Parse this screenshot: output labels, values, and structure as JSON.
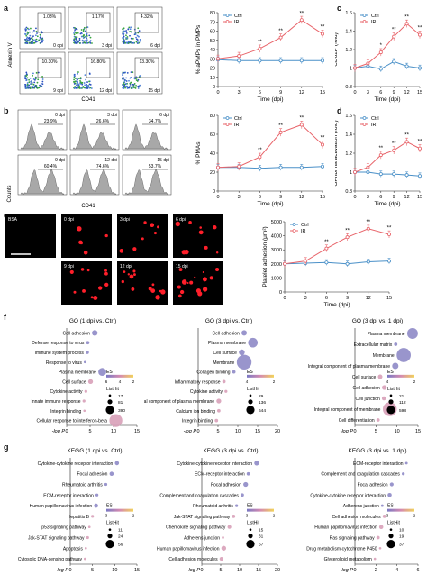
{
  "panel_labels": {
    "a": "a",
    "b": "b",
    "c": "c",
    "d": "d",
    "e": "e",
    "f": "f",
    "g": "g"
  },
  "flow_a": {
    "ylabel": "Annexin V",
    "xlabel": "CD41",
    "cells": [
      {
        "pct": "1.03%",
        "time": "0 dpi"
      },
      {
        "pct": "1.17%",
        "time": "3 dpi"
      },
      {
        "pct": "4.32%",
        "time": "6 dpi"
      },
      {
        "pct": "10.30%",
        "time": "9 dpi"
      },
      {
        "pct": "16.80%",
        "time": "12 dpi"
      },
      {
        "pct": "13.30%",
        "time": "15 dpi"
      }
    ]
  },
  "flow_b": {
    "ylabel": "Counts",
    "xlabel": "CD41",
    "cells": [
      {
        "pct": "23.9%",
        "time": "0 dpi"
      },
      {
        "pct": "26.6%",
        "time": "3 dpi"
      },
      {
        "pct": "34.7%",
        "time": "6 dpi"
      },
      {
        "pct": "60.4%",
        "time": "9 dpi"
      },
      {
        "pct": "74.6%",
        "time": "12 dpi"
      },
      {
        "pct": "53.7%",
        "time": "15 dpi"
      }
    ]
  },
  "microscopy_e": {
    "labels": [
      "BSA",
      "0 dpi",
      "3 dpi",
      "6 dpi",
      "9 dpi",
      "12 dpi",
      "15 dpi"
    ]
  },
  "colors": {
    "ctrl": "#4a90c8",
    "ir": "#e8646a",
    "bubble": "#8e8ac6",
    "bubble_light": "#d8a0b8"
  },
  "chart_data": [
    {
      "id": "a_line",
      "type": "line",
      "ylabel": "% aPMPs in PMPs",
      "xlabel": "Time (dpi)",
      "x": [
        0,
        3,
        6,
        9,
        12,
        15
      ],
      "xlim": [
        0,
        15
      ],
      "ylim": [
        0,
        80
      ],
      "yticks": [
        0,
        10,
        20,
        30,
        40,
        50,
        60,
        70,
        80
      ],
      "series": [
        {
          "name": "Ctrl",
          "values": [
            29,
            28,
            28,
            28,
            28,
            28
          ]
        },
        {
          "name": "IR",
          "values": [
            30,
            33,
            41,
            53,
            72,
            57
          ]
        }
      ],
      "sig": [
        "",
        "",
        "**",
        "**",
        "**",
        "**"
      ],
      "legend": [
        "Ctrl",
        "IR"
      ]
    },
    {
      "id": "c_line",
      "type": "line",
      "ylabel": "CD62P (fold)",
      "xlabel": "Time (dpi)",
      "x": [
        0,
        3,
        6,
        9,
        12,
        15
      ],
      "xlim": [
        0,
        15
      ],
      "ylim": [
        0.8,
        1.6
      ],
      "yticks": [
        0.8,
        1.0,
        1.2,
        1.4,
        1.6
      ],
      "series": [
        {
          "name": "Ctrl",
          "values": [
            1.0,
            1.02,
            0.99,
            1.07,
            1.02,
            1.0
          ]
        },
        {
          "name": "IR",
          "values": [
            1.0,
            1.05,
            1.17,
            1.34,
            1.48,
            1.36
          ]
        }
      ],
      "sig": [
        "",
        "",
        "*",
        "**",
        "**",
        "**"
      ],
      "legend": [
        "Ctrl",
        "IR"
      ]
    },
    {
      "id": "b_line",
      "type": "line",
      "ylabel": "% PMAs",
      "xlabel": "Time (dpi)",
      "x": [
        0,
        3,
        6,
        9,
        12,
        15
      ],
      "xlim": [
        0,
        15
      ],
      "ylim": [
        0,
        80
      ],
      "yticks": [
        0,
        20,
        40,
        60,
        80
      ],
      "series": [
        {
          "name": "Ctrl",
          "values": [
            25,
            25,
            24,
            25,
            25,
            26
          ]
        },
        {
          "name": "IR",
          "values": [
            25,
            26,
            36,
            62,
            70,
            49
          ]
        }
      ],
      "sig": [
        "",
        "",
        "**",
        "**",
        "**",
        "**"
      ],
      "legend": [
        "Ctrl",
        "IR"
      ]
    },
    {
      "id": "d_line",
      "type": "line",
      "ylabel": "GPIIb/IIIa activation (fold)",
      "xlabel": "Time (dpi)",
      "x": [
        0,
        3,
        6,
        9,
        12,
        15
      ],
      "xlim": [
        0,
        15
      ],
      "ylim": [
        0.8,
        1.6
      ],
      "yticks": [
        0.8,
        1.0,
        1.2,
        1.4,
        1.6
      ],
      "series": [
        {
          "name": "Ctrl",
          "values": [
            1.0,
            1.0,
            0.98,
            0.98,
            0.97,
            0.96
          ]
        },
        {
          "name": "IR",
          "values": [
            1.0,
            1.05,
            1.18,
            1.23,
            1.32,
            1.25
          ]
        }
      ],
      "sig": [
        "",
        "",
        "**",
        "**",
        "**",
        "**"
      ],
      "legend": [
        "Ctrl",
        "IR"
      ]
    },
    {
      "id": "e_line",
      "type": "line",
      "ylabel": "Platelet adhesion (μm²)",
      "xlabel": "Time (dpi)",
      "x": [
        0,
        3,
        6,
        9,
        12,
        15
      ],
      "xlim": [
        0,
        15
      ],
      "ylim": [
        0,
        5000
      ],
      "yticks": [
        0,
        1000,
        2000,
        3000,
        4000,
        5000
      ],
      "series": [
        {
          "name": "Ctrl",
          "values": [
            2000,
            2050,
            2100,
            2000,
            2150,
            2200
          ]
        },
        {
          "name": "IR",
          "values": [
            2000,
            2200,
            3100,
            3900,
            4500,
            4100
          ]
        }
      ],
      "sig": [
        "",
        "",
        "**",
        "**",
        "**",
        "**"
      ],
      "legend": [
        "Ctrl",
        "IR"
      ]
    },
    {
      "id": "f1",
      "type": "scatter",
      "title": "GO (1 dpi vs. Ctrl)",
      "xlabel": "-log P",
      "xlim": [
        0,
        15
      ],
      "xticks": [
        0,
        5,
        10,
        15
      ],
      "categories": [
        "Cell adhesion",
        "Defense response to virus",
        "Immune system process",
        "Response to virus",
        "Plasma membrane",
        "Cell surface",
        "Cytokine activity",
        "Innate immune response",
        "Integrin binding",
        "Cellular response to interferon-beta"
      ],
      "values": [
        6.0,
        4.5,
        4.4,
        3.9,
        7.6,
        5.1,
        4.1,
        3.7,
        3.8,
        10.5
      ],
      "sizes": [
        55,
        20,
        20,
        10,
        110,
        40,
        15,
        15,
        10,
        290
      ],
      "es_label": "ES",
      "es_ticks": [
        "6",
        "4",
        "2"
      ],
      "listhit_label": "ListHit",
      "listhit_values": [
        "17",
        "81",
        "390"
      ]
    },
    {
      "id": "f2",
      "type": "scatter",
      "title": "GO (3 dpi vs. Ctrl)",
      "xlabel": "-log P",
      "xlim": [
        0,
        20
      ],
      "xticks": [
        0,
        5,
        10,
        15,
        20
      ],
      "categories": [
        "Cell adhesion",
        "Plasma membrane",
        "Cell surface",
        "Membrane",
        "Collagen binding",
        "Inflammatory response",
        "Cytokine activity",
        "Integral component of plasma membrane",
        "Calcium ion binding",
        "Integrin binding"
      ],
      "values": [
        11.6,
        13.8,
        11.0,
        11.6,
        9.0,
        6.5,
        7.0,
        5.2,
        5.2,
        4.6
      ],
      "sizes": [
        50,
        160,
        60,
        380,
        20,
        20,
        15,
        40,
        20,
        20
      ],
      "es_label": "ES",
      "es_ticks": [
        "4",
        "2"
      ],
      "listhit_label": "ListHit",
      "listhit_values": [
        "29",
        "136",
        "644"
      ]
    },
    {
      "id": "f3",
      "type": "scatter",
      "title": "GO (3 dpi vs. 1 dpi)",
      "xlabel": "-log P",
      "xlim": [
        0,
        15
      ],
      "xticks": [
        0,
        5,
        10,
        15
      ],
      "categories": [
        "Plasma membrane",
        "Extracellular matrix",
        "Membrane",
        "Integral component of plasma membrane",
        "Cell surface",
        "Cell adhesion",
        "Cell junction",
        "Integral component of membrane",
        "Cell differentiation"
      ],
      "values": [
        13.7,
        9.7,
        11.6,
        9.6,
        6.0,
        7.0,
        6.9,
        8.3,
        5.5
      ],
      "sizes": [
        200,
        20,
        350,
        70,
        35,
        40,
        30,
        340,
        20
      ],
      "es_label": "ES",
      "es_ticks": [
        "4",
        "2"
      ],
      "listhit_label": "ListHit",
      "listhit_values": [
        "21",
        "112",
        "598"
      ]
    },
    {
      "id": "g1",
      "type": "scatter",
      "title": "KEGG (1 dpi vs. Ctrl)",
      "xlabel": "-log P",
      "xlim": [
        0,
        15
      ],
      "xticks": [
        0,
        5,
        10,
        15
      ],
      "categories": [
        "Cytokine-cytokine receptor interaction",
        "Focal adhesion",
        "Rheumatoid arthritis",
        "ECM-receptor interaction",
        "Human papillomavirus infection",
        "Hepatitis B",
        "p53 signaling pathway",
        "Jak-STAT signaling pathway",
        "Apoptosis",
        "Cytosolic DNA-sensing pathway"
      ],
      "values": [
        10.5,
        9.3,
        8.0,
        6.0,
        5.8,
        5.0,
        4.3,
        3.9,
        3.5,
        3.3
      ],
      "sizes": [
        30,
        30,
        15,
        15,
        30,
        15,
        10,
        15,
        10,
        8
      ],
      "es_label": "ES",
      "es_ticks": [
        "3",
        "2"
      ],
      "listhit_label": "ListHit",
      "listhit_values": [
        "11",
        "24",
        "56"
      ]
    },
    {
      "id": "g2",
      "type": "scatter",
      "title": "KEGG (3 dpi vs. Ctrl)",
      "xlabel": "-log P",
      "xlim": [
        0,
        20
      ],
      "xticks": [
        0,
        5,
        10,
        15,
        20
      ],
      "categories": [
        "Cytokine-cytokine receptor interaction",
        "ECM-receptor interaction",
        "Focal adhesion",
        "Complement and coagulation cascades",
        "Rheumatoid arthritis",
        "Jak-STAT signaling pathway",
        "Chemokine signaling pathway",
        "Adherens junction",
        "Human papillomavirus infection",
        "Cell adhesion molecules"
      ],
      "values": [
        14.5,
        12.3,
        11.6,
        10.7,
        9.2,
        8.4,
        7.3,
        5.6,
        5.8,
        5.2
      ],
      "sizes": [
        40,
        20,
        40,
        20,
        15,
        20,
        25,
        10,
        40,
        25
      ],
      "es_label": "ES",
      "es_ticks": [
        "3",
        "2"
      ],
      "listhit_label": "ListHit",
      "listhit_values": [
        "15",
        "31",
        "67"
      ]
    },
    {
      "id": "g3",
      "type": "scatter",
      "title": "KEGG (3 dpi vs. 1 dpi)",
      "xlabel": "-log P",
      "xlim": [
        0,
        6
      ],
      "xticks": [
        0,
        2,
        4,
        6
      ],
      "categories": [
        "ECM-receptor interaction",
        "Complement and coagulation cascades",
        "Focal adhesion",
        "Cytokine-cytokine receptor interaction",
        "Adherens junction",
        "Cell adhesion molecules",
        "Human papillomavirus infection",
        "Ras signaling pathway",
        "Drug metabolism-cytochrome P450",
        "Glycerolipid metabolism"
      ],
      "values": [
        4.9,
        4.6,
        3.5,
        3.3,
        2.6,
        2.8,
        2.5,
        2.2,
        2.4,
        1.9
      ],
      "sizes": [
        12,
        15,
        25,
        30,
        12,
        20,
        30,
        20,
        10,
        10
      ],
      "es_label": "ES",
      "es_ticks": [
        "3",
        "2"
      ],
      "listhit_label": "ListHit",
      "listhit_values": [
        "10",
        "19",
        "37"
      ]
    }
  ]
}
